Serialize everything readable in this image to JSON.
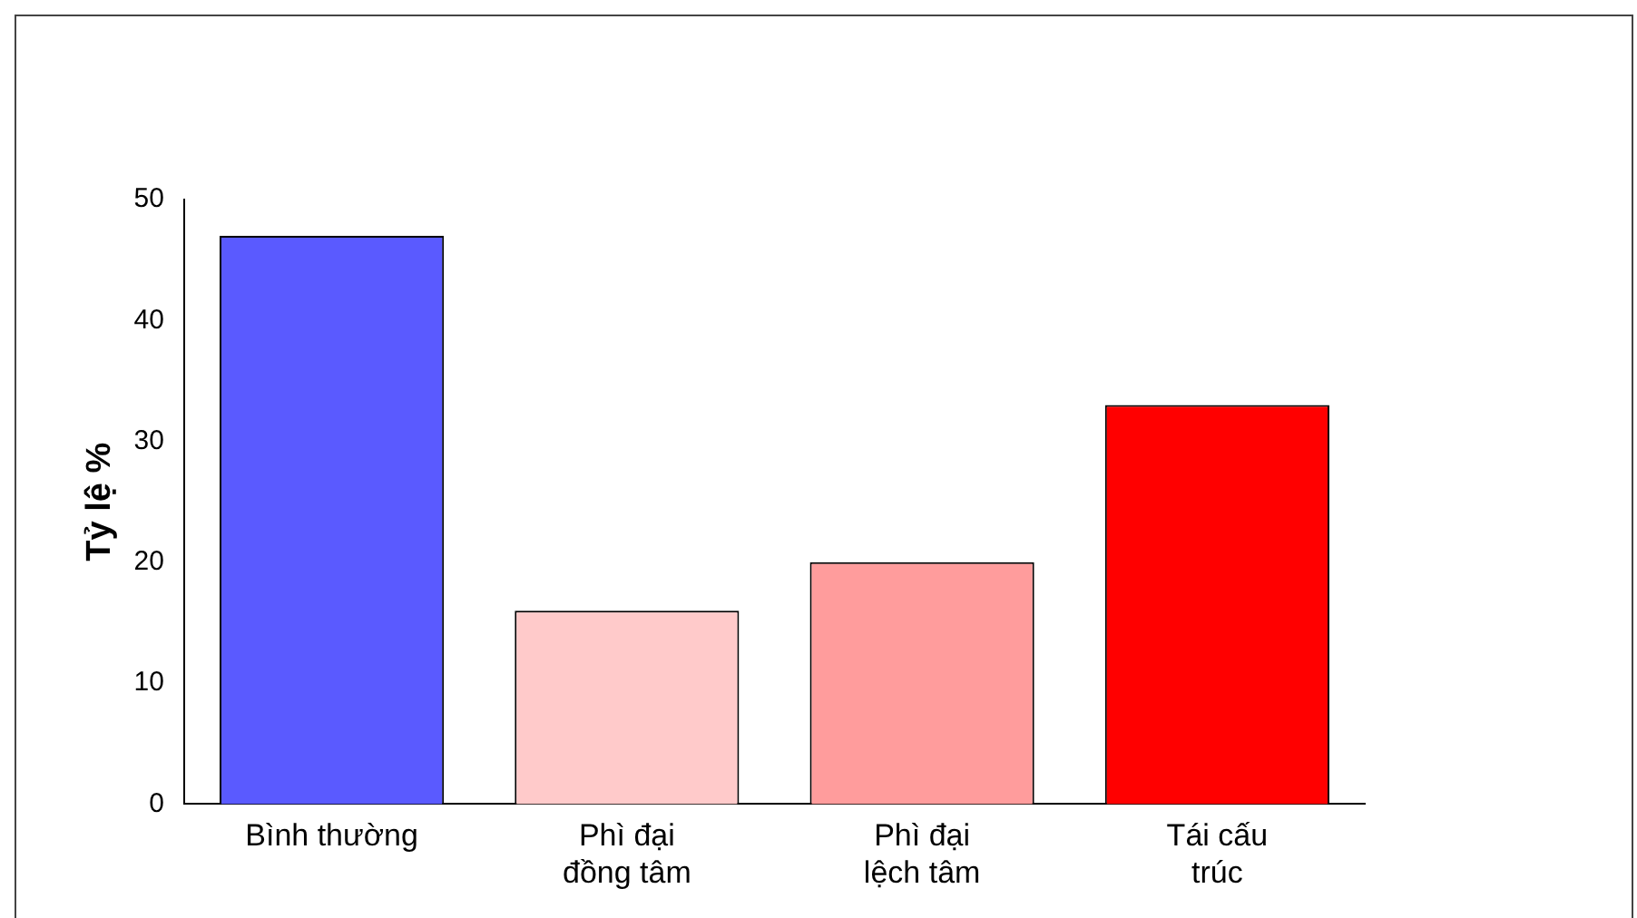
{
  "chart_data": {
    "type": "bar",
    "ylabel": "Tỷ lệ %",
    "categories": [
      "Bình thường",
      "Phì đại đồng tâm",
      "Phì đại lệch tâm",
      "Tái cấu trúc"
    ],
    "values": [
      47,
      16,
      20,
      33
    ],
    "colors": [
      "#5a5aff",
      "#ffcaca",
      "#ff9c9c",
      "#ff0000"
    ],
    "ylim": [
      0,
      50
    ],
    "yticks": [
      0,
      10,
      20,
      30,
      40,
      50
    ],
    "grid": false,
    "legend": false
  }
}
